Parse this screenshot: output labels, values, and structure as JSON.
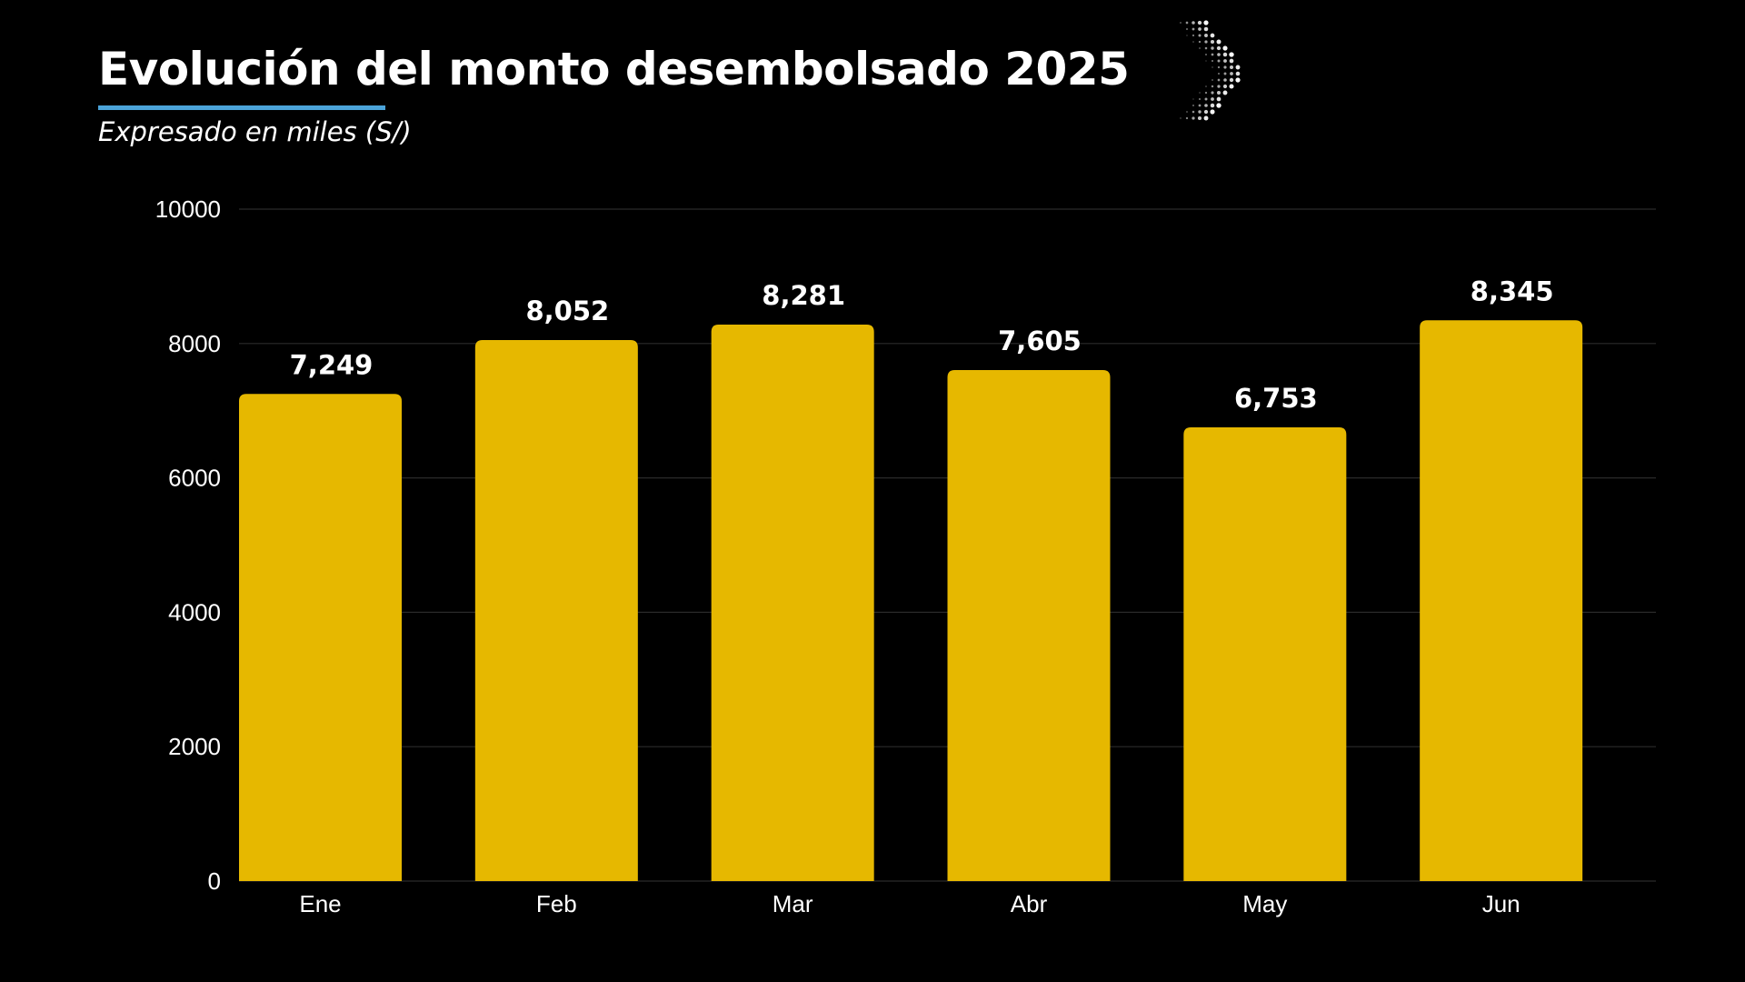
{
  "header": {
    "title": "Evolución del monto desembolsado 2025",
    "subtitle": "Expresado en miles (S/)"
  },
  "colors": {
    "background": "#000000",
    "bar": "#E6B800",
    "accent_underline": "#4BA3D9",
    "grid": "#2a2a2a",
    "text": "#FFFFFF"
  },
  "decoration": {
    "icon": "dotted-chevron-right-icon"
  },
  "chart_data": {
    "type": "bar",
    "categories": [
      "Ene",
      "Feb",
      "Mar",
      "Abr",
      "May",
      "Jun"
    ],
    "values": [
      7249,
      8052,
      8281,
      7605,
      6753,
      8345
    ],
    "value_labels": [
      "7,249",
      "8,052",
      "8,281",
      "7,605",
      "6,753",
      "8,345"
    ],
    "title": "Evolución del monto desembolsado 2025",
    "subtitle": "Expresado en miles (S/)",
    "xlabel": "",
    "ylabel": "",
    "ylim": [
      0,
      10000
    ],
    "yticks": [
      0,
      2000,
      4000,
      6000,
      8000,
      10000
    ],
    "grid": true,
    "legend": "none"
  }
}
